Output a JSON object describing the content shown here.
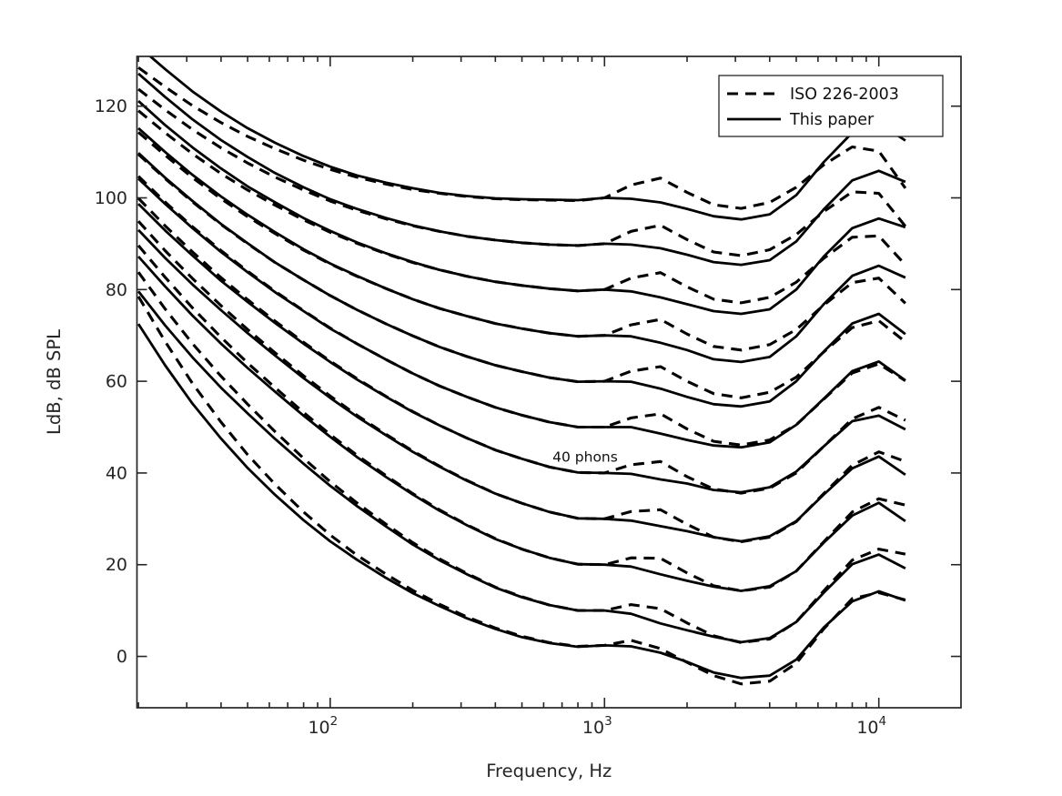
{
  "figure": {
    "background": "#ffffff",
    "curve_color": "#000000",
    "axis_color": "#262626",
    "text_color": "#262626"
  },
  "chart_data": {
    "type": "line",
    "title": "",
    "xlabel": "Frequency, Hz",
    "ylabel": "LdB, dB SPL",
    "x_scale": "log",
    "grid": false,
    "xlim": [
      19.75,
      19930
    ],
    "ylim": [
      -11.2,
      130.85
    ],
    "x_major_ticks": [
      {
        "value": 100,
        "base": "10",
        "exp": "2"
      },
      {
        "value": 1000,
        "base": "10",
        "exp": "3"
      },
      {
        "value": 10000,
        "base": "10",
        "exp": "4"
      }
    ],
    "y_ticks": [
      0,
      20,
      40,
      60,
      80,
      100,
      120
    ],
    "legend": {
      "position": "top-right",
      "entries": [
        {
          "label": "ISO 226-2003",
          "style": "dashed"
        },
        {
          "label": "This paper",
          "style": "solid"
        }
      ]
    },
    "annotation": {
      "text": "40 phons",
      "freq": 850,
      "spl": 43.5
    },
    "frequencies_hz": [
      20,
      25,
      31.5,
      40,
      50,
      63,
      80,
      100,
      125,
      160,
      200,
      250,
      315,
      400,
      500,
      630,
      800,
      1000,
      1250,
      1600,
      2000,
      2500,
      3150,
      4000,
      5000,
      6300,
      8000,
      10000,
      12500
    ],
    "series": [
      {
        "phons": 0,
        "iso_spl": [
          78.5,
          68.7,
          59.5,
          51.1,
          44.0,
          37.5,
          31.5,
          26.5,
          22.1,
          17.9,
          14.4,
          11.4,
          8.6,
          6.2,
          4.4,
          3.0,
          2.2,
          2.4,
          3.5,
          1.7,
          -1.3,
          -4.2,
          -6.0,
          -5.4,
          -1.5,
          6.0,
          12.6,
          13.9,
          12.3
        ],
        "paper_spl": [
          72.5,
          63.5,
          55.1,
          47.5,
          41.1,
          35.2,
          29.7,
          25.1,
          21.1,
          17.1,
          13.8,
          11.0,
          8.3,
          6.0,
          4.2,
          2.9,
          2.1,
          2.4,
          2.2,
          0.8,
          -1.2,
          -3.5,
          -4.7,
          -4.2,
          -0.7,
          6.3,
          12.0,
          14.2,
          12.2
        ]
      },
      {
        "phons": 10,
        "iso_spl": [
          83.8,
          75.8,
          68.2,
          61.1,
          55.0,
          49.0,
          43.2,
          38.1,
          33.5,
          28.8,
          24.8,
          21.3,
          18.1,
          15.1,
          13.0,
          11.2,
          10.0,
          10.0,
          11.3,
          10.4,
          7.3,
          4.5,
          3.0,
          3.8,
          7.5,
          14.3,
          21.0,
          23.4,
          22.3
        ],
        "paper_spl": [
          79.6,
          72.2,
          65.2,
          58.6,
          53.0,
          47.4,
          42.0,
          37.2,
          32.8,
          28.3,
          24.4,
          21.0,
          17.9,
          15.0,
          12.9,
          11.2,
          10.0,
          10.0,
          9.3,
          7.2,
          5.7,
          4.3,
          3.1,
          4.0,
          7.5,
          13.9,
          20.1,
          22.2,
          19.2
        ]
      },
      {
        "phons": 20,
        "iso_spl": [
          89.6,
          82.7,
          76.0,
          69.6,
          64.0,
          58.6,
          53.2,
          48.4,
          43.9,
          39.4,
          35.5,
          32.0,
          28.7,
          25.7,
          23.4,
          21.5,
          20.1,
          20.0,
          21.5,
          21.4,
          18.2,
          15.4,
          14.3,
          15.1,
          18.6,
          25.0,
          31.5,
          34.4,
          33.0
        ],
        "paper_spl": [
          87.2,
          80.7,
          74.3,
          68.2,
          62.9,
          57.7,
          52.5,
          47.9,
          43.5,
          39.1,
          35.3,
          31.8,
          28.6,
          25.6,
          23.4,
          21.5,
          20.1,
          20.0,
          19.6,
          17.9,
          16.5,
          15.2,
          14.3,
          15.3,
          18.6,
          24.8,
          30.7,
          33.5,
          29.5
        ]
      },
      {
        "phons": 30,
        "iso_spl": [
          94.9,
          88.5,
          82.4,
          76.5,
          71.3,
          66.2,
          61.2,
          56.8,
          52.6,
          48.4,
          44.8,
          41.5,
          38.4,
          35.5,
          33.4,
          31.5,
          30.1,
          30.0,
          31.6,
          32.0,
          28.8,
          26.0,
          25.0,
          26.0,
          29.4,
          35.5,
          41.7,
          44.6,
          42.5
        ],
        "paper_spl": [
          93.0,
          86.9,
          81.1,
          75.5,
          70.5,
          65.6,
          60.7,
          56.4,
          52.3,
          48.2,
          44.6,
          41.4,
          38.3,
          35.5,
          33.4,
          31.5,
          30.1,
          30.0,
          29.6,
          28.4,
          27.3,
          26.0,
          25.1,
          26.2,
          29.5,
          35.3,
          41.0,
          43.6,
          39.6
        ]
      },
      {
        "phons": 40,
        "iso_spl": [
          99.9,
          93.9,
          88.2,
          82.6,
          77.8,
          73.1,
          68.5,
          64.4,
          60.6,
          56.7,
          53.4,
          50.4,
          47.6,
          45.0,
          43.1,
          41.3,
          40.1,
          40.0,
          41.8,
          42.5,
          39.2,
          36.5,
          35.6,
          36.7,
          40.0,
          45.8,
          51.8,
          54.3,
          51.5
        ],
        "paper_spl": [
          98.7,
          92.9,
          87.4,
          81.9,
          77.3,
          72.7,
          68.2,
          64.2,
          60.4,
          56.6,
          53.3,
          50.4,
          47.6,
          45.0,
          43.1,
          41.3,
          40.1,
          40.0,
          39.8,
          38.6,
          37.7,
          36.3,
          35.8,
          36.9,
          40.3,
          45.8,
          51.3,
          52.5,
          49.5
        ]
      },
      {
        "phons": 50,
        "iso_spl": [
          104.7,
          99.1,
          93.7,
          88.5,
          84.0,
          79.6,
          75.4,
          71.6,
          68.2,
          64.7,
          61.7,
          59.0,
          56.6,
          54.3,
          52.6,
          51.1,
          50.0,
          50.0,
          52.0,
          52.9,
          49.6,
          46.9,
          46.1,
          47.2,
          50.5,
          56.1,
          61.8,
          63.8,
          60.1
        ],
        "paper_spl": [
          104.2,
          98.7,
          93.4,
          88.2,
          83.8,
          79.4,
          75.3,
          71.5,
          68.2,
          64.7,
          61.7,
          59.0,
          56.6,
          54.3,
          52.6,
          51.1,
          50.0,
          50.0,
          50.0,
          48.6,
          47.2,
          46.0,
          45.6,
          46.7,
          50.5,
          56.2,
          62.2,
          64.3,
          60.2
        ]
      },
      {
        "phons": 60,
        "iso_spl": [
          109.5,
          104.2,
          99.1,
          94.2,
          90.0,
          85.9,
          82.1,
          78.7,
          75.6,
          72.5,
          69.9,
          67.5,
          65.4,
          63.5,
          62.1,
          60.8,
          59.9,
          60.0,
          62.2,
          63.2,
          60.0,
          57.3,
          56.4,
          57.6,
          60.9,
          66.4,
          71.7,
          73.2,
          68.6
        ],
        "paper_spl": [
          109.8,
          104.4,
          99.3,
          94.3,
          90.1,
          85.9,
          82.1,
          78.7,
          75.6,
          72.5,
          69.9,
          67.5,
          65.4,
          63.5,
          62.1,
          60.8,
          59.9,
          60.0,
          59.9,
          58.4,
          56.6,
          55.0,
          54.5,
          55.6,
          60.0,
          66.5,
          72.6,
          74.7,
          70.3
        ]
      },
      {
        "phons": 70,
        "iso_spl": [
          114.3,
          109.3,
          104.4,
          99.8,
          95.9,
          92.2,
          88.6,
          85.6,
          82.9,
          80.2,
          77.9,
          75.9,
          74.2,
          72.6,
          71.5,
          70.5,
          69.8,
          70.0,
          72.3,
          73.5,
          70.3,
          67.6,
          66.8,
          68.0,
          71.3,
          76.6,
          81.5,
          82.5,
          77.0
        ],
        "paper_spl": [
          115.2,
          110.0,
          105.0,
          100.3,
          96.3,
          92.5,
          88.8,
          85.7,
          83.0,
          80.2,
          77.9,
          75.9,
          74.2,
          72.6,
          71.5,
          70.5,
          69.8,
          70.0,
          69.8,
          68.4,
          66.8,
          64.8,
          64.2,
          65.3,
          69.8,
          76.8,
          83.0,
          85.2,
          82.6
        ]
      },
      {
        "phons": 80,
        "iso_spl": [
          119.0,
          114.2,
          109.6,
          105.3,
          101.7,
          98.4,
          95.2,
          92.5,
          90.1,
          87.8,
          85.9,
          84.3,
          82.9,
          81.7,
          80.9,
          80.2,
          79.7,
          80.0,
          82.5,
          83.7,
          80.6,
          77.9,
          77.1,
          78.3,
          81.6,
          86.8,
          91.4,
          91.7,
          85.4
        ],
        "paper_spl": [
          121.1,
          115.9,
          111.0,
          106.4,
          102.5,
          99.0,
          95.6,
          92.8,
          90.3,
          87.9,
          86.0,
          84.3,
          82.9,
          81.7,
          80.9,
          80.2,
          79.7,
          80.0,
          79.6,
          78.3,
          76.8,
          75.3,
          74.7,
          75.7,
          80.0,
          87.2,
          93.4,
          95.5,
          93.6
        ]
      },
      {
        "phons": 90,
        "iso_spl": [
          123.7,
          119.2,
          114.9,
          110.9,
          107.6,
          104.5,
          101.7,
          99.3,
          97.3,
          95.4,
          93.9,
          92.7,
          91.6,
          90.8,
          90.2,
          89.8,
          89.6,
          90.0,
          92.7,
          94.0,
          90.9,
          88.2,
          87.4,
          88.7,
          92.0,
          97.0,
          101.3,
          101.0,
          93.8
        ],
        "paper_spl": [
          127.1,
          122.0,
          117.1,
          112.6,
          108.9,
          105.4,
          102.3,
          99.7,
          97.6,
          95.6,
          94.0,
          92.7,
          91.6,
          90.8,
          90.2,
          89.8,
          89.6,
          90.0,
          89.8,
          89.0,
          87.6,
          86.0,
          85.4,
          86.4,
          90.5,
          97.5,
          103.8,
          105.9,
          103.5
        ]
      },
      {
        "phons": 100,
        "iso_spl": [
          128.4,
          124.2,
          120.1,
          116.4,
          113.4,
          110.7,
          108.2,
          106.2,
          104.5,
          103.0,
          101.8,
          101.0,
          100.3,
          99.8,
          99.6,
          99.5,
          99.4,
          100.0,
          102.8,
          104.3,
          101.2,
          98.5,
          97.7,
          99.0,
          102.3,
          107.2,
          111.1,
          110.2,
          102.1
        ],
        "paper_spl": [
          133.1,
          128.1,
          123.2,
          118.8,
          115.2,
          112.0,
          109.1,
          106.8,
          104.9,
          103.3,
          102.1,
          101.1,
          100.4,
          99.9,
          99.7,
          99.6,
          99.5,
          100.0,
          99.8,
          99.0,
          97.6,
          96.0,
          95.3,
          96.4,
          100.6,
          107.8,
          114.2,
          116.3,
          112.5
        ]
      }
    ]
  }
}
